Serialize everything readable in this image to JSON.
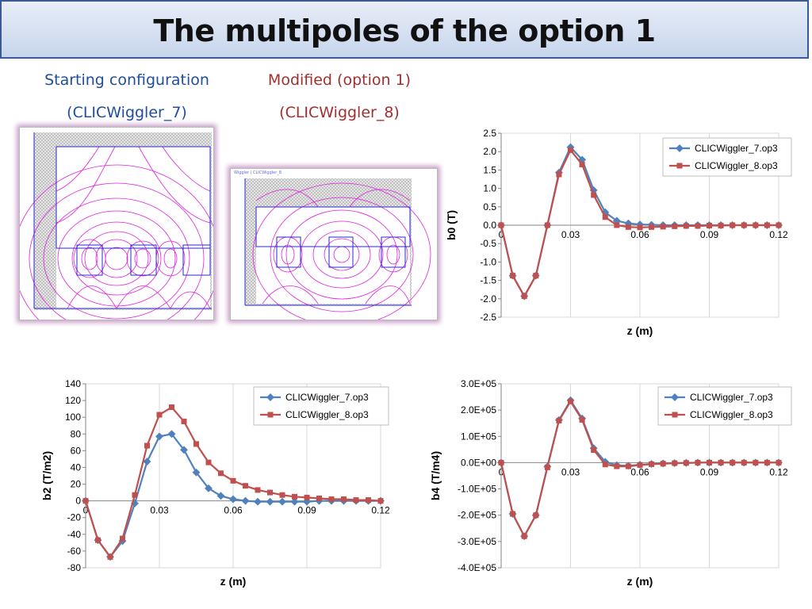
{
  "slide": {
    "title": "The multipoles of the option 1",
    "caption_left_1": "Starting configuration",
    "caption_left_2": "(CLICWiggler_7)",
    "caption_right_1": "Modified (option 1)",
    "caption_right_2": "(CLICWiggler_8)",
    "thumb_small_title": "Wiggler | CLICWiggler_8"
  },
  "colors": {
    "series1": "#4f81bd",
    "series2": "#c0504d",
    "field_lines": "#e020e0",
    "title_border": "#3a5a96"
  },
  "chart_data": [
    {
      "id": "b0",
      "type": "line",
      "xlabel": "z (m)",
      "ylabel": "b0 (T)",
      "xlim": [
        0,
        0.12
      ],
      "ylim": [
        -2.5,
        2.5
      ],
      "xticks": [
        "0",
        "0.03",
        "0.06",
        "0.09",
        "0.12"
      ],
      "yticks": [
        "2.5",
        "2.0",
        "1.5",
        "1.0",
        "0.5",
        "0.0",
        "-0.5",
        "-1.0",
        "-1.5",
        "-2.0",
        "-2.5"
      ],
      "legend": "top-right",
      "grid": "vertical",
      "x": [
        0,
        0.005,
        0.01,
        0.015,
        0.02,
        0.025,
        0.03,
        0.035,
        0.04,
        0.045,
        0.05,
        0.055,
        0.06,
        0.065,
        0.07,
        0.075,
        0.08,
        0.085,
        0.09,
        0.095,
        0.1,
        0.105,
        0.11,
        0.115,
        0.12
      ],
      "series": [
        {
          "name": "CLICWiggler_7.op3",
          "values": [
            0,
            -1.37,
            -1.93,
            -1.37,
            0,
            1.43,
            2.12,
            1.78,
            0.95,
            0.35,
            0.12,
            0.05,
            0.02,
            0.01,
            0,
            0,
            0,
            0,
            0,
            0,
            0,
            0,
            0,
            0,
            0
          ]
        },
        {
          "name": "CLICWiggler_8.op3",
          "values": [
            0,
            -1.37,
            -1.93,
            -1.37,
            0,
            1.38,
            2.04,
            1.65,
            0.82,
            0.22,
            0,
            -0.05,
            -0.06,
            -0.05,
            -0.04,
            -0.03,
            -0.02,
            -0.02,
            -0.01,
            -0.01,
            0,
            0,
            0,
            0,
            0
          ]
        }
      ]
    },
    {
      "id": "b2",
      "type": "line",
      "xlabel": "z (m)",
      "ylabel": "b2 (T/m2)",
      "xlim": [
        0,
        0.12
      ],
      "ylim": [
        -80,
        140
      ],
      "xticks": [
        "0",
        "0.03",
        "0.06",
        "0.09",
        "0.12"
      ],
      "yticks": [
        "140",
        "120",
        "100",
        "80",
        "60",
        "40",
        "20",
        "0",
        "-20",
        "-40",
        "-60",
        "-80"
      ],
      "legend": "top-right",
      "grid": "vertical",
      "x": [
        0,
        0.005,
        0.01,
        0.015,
        0.02,
        0.025,
        0.03,
        0.035,
        0.04,
        0.045,
        0.05,
        0.055,
        0.06,
        0.065,
        0.07,
        0.075,
        0.08,
        0.085,
        0.09,
        0.095,
        0.1,
        0.105,
        0.11,
        0.115,
        0.12
      ],
      "series": [
        {
          "name": "CLICWiggler_7.op3",
          "values": [
            0,
            -47,
            -67,
            -48,
            -3,
            47,
            77,
            80,
            61,
            34,
            15,
            6,
            2,
            0,
            -1,
            -1,
            -1,
            -1,
            -1,
            0,
            0,
            0,
            0,
            0,
            0
          ]
        },
        {
          "name": "CLICWiggler_8.op3",
          "values": [
            0,
            -47,
            -67,
            -45,
            7,
            66,
            103,
            112,
            95,
            68,
            46,
            33,
            24,
            18,
            13,
            10,
            7,
            5,
            4,
            3,
            2,
            2,
            1,
            1,
            0
          ]
        }
      ]
    },
    {
      "id": "b4",
      "type": "line",
      "xlabel": "z (m)",
      "ylabel": "b4 (T/m4)",
      "xlim": [
        0,
        0.12
      ],
      "ylim": [
        -400000,
        300000
      ],
      "xticks": [
        "0",
        "0.03",
        "0.06",
        "0.09",
        "0.12"
      ],
      "yticks": [
        "3.0E+05",
        "2.0E+05",
        "1.0E+05",
        "0.0E+00",
        "-1.0E+05",
        "-2.0E+05",
        "-3.0E+05",
        "-4.0E+05"
      ],
      "legend": "top-right",
      "grid": "vertical",
      "x": [
        0,
        0.005,
        0.01,
        0.015,
        0.02,
        0.025,
        0.03,
        0.035,
        0.04,
        0.045,
        0.05,
        0.055,
        0.06,
        0.065,
        0.07,
        0.075,
        0.08,
        0.085,
        0.09,
        0.095,
        0.1,
        0.105,
        0.11,
        0.115,
        0.12
      ],
      "series": [
        {
          "name": "CLICWiggler_7.op3",
          "values": [
            0,
            -195000,
            -280000,
            -200000,
            -15000,
            162000,
            237000,
            168000,
            55000,
            3000,
            -10000,
            -12000,
            -8000,
            -5000,
            -3000,
            -2000,
            -1000,
            0,
            0,
            0,
            0,
            0,
            0,
            0,
            0
          ]
        },
        {
          "name": "CLICWiggler_8.op3",
          "values": [
            0,
            -195000,
            -280000,
            -200000,
            -18000,
            160000,
            233000,
            163000,
            48000,
            -7000,
            -14000,
            -14000,
            -9000,
            -6000,
            -4000,
            -2000,
            -1000,
            0,
            0,
            0,
            0,
            0,
            0,
            0,
            0
          ]
        }
      ]
    }
  ]
}
